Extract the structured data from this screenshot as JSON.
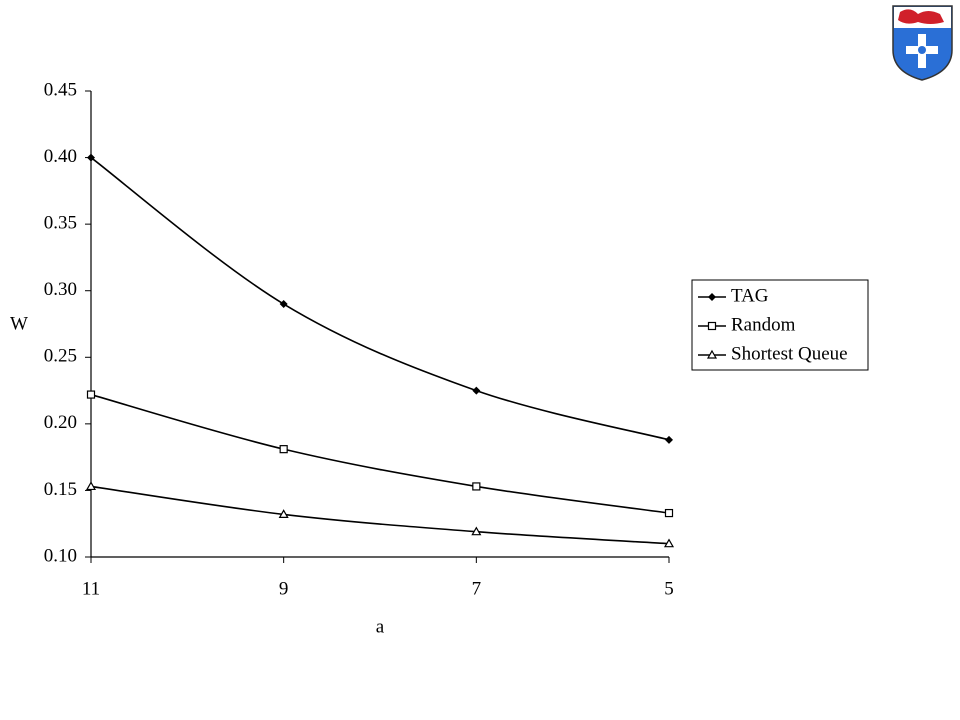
{
  "chart_data": {
    "type": "line",
    "x_label": "a",
    "y_label": "W",
    "categories": [
      "11",
      "9",
      "7",
      "5"
    ],
    "series": [
      {
        "name": "TAG",
        "color": "#000000",
        "marker": "diamond",
        "values": [
          0.4,
          0.29,
          0.225,
          0.188
        ]
      },
      {
        "name": "Random",
        "color": "#000000",
        "marker": "square",
        "values": [
          0.222,
          0.181,
          0.153,
          0.133
        ]
      },
      {
        "name": "Shortest Queue",
        "color": "#000000",
        "marker": "triangle",
        "values": [
          0.153,
          0.132,
          0.119,
          0.11
        ]
      }
    ],
    "ylim": [
      0.1,
      0.45
    ],
    "yticks": [
      {
        "value": 0.1,
        "label": "0.10"
      },
      {
        "value": 0.15,
        "label": "0.15"
      },
      {
        "value": 0.2,
        "label": "0.20"
      },
      {
        "value": 0.25,
        "label": "0.25"
      },
      {
        "value": 0.3,
        "label": "0.30"
      },
      {
        "value": 0.35,
        "label": "0.35"
      },
      {
        "value": 0.4,
        "label": "0.40"
      },
      {
        "value": 0.45,
        "label": "0.45"
      }
    ],
    "grid": false,
    "legend": "right"
  }
}
